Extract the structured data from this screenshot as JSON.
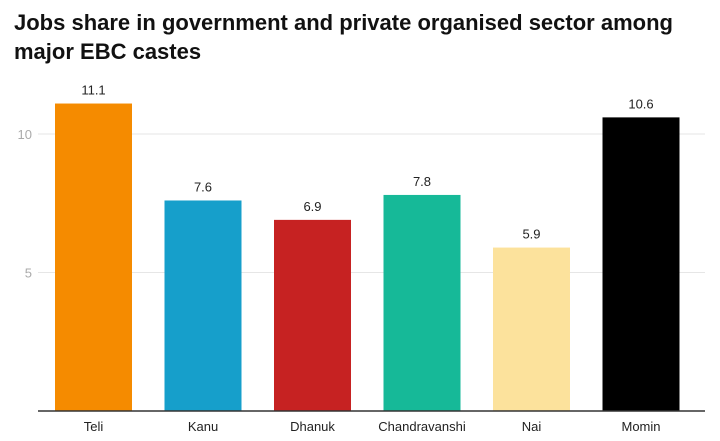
{
  "chart_data": {
    "type": "bar",
    "title": "Jobs share in government and private organised sector among major EBC castes",
    "categories": [
      "Teli",
      "Kanu",
      "Dhanuk",
      "Chandravanshi",
      "Nai",
      "Momin"
    ],
    "values": [
      11.1,
      7.6,
      6.9,
      7.8,
      5.9,
      10.6
    ],
    "data_labels": [
      "11.1",
      "7.6",
      "6.9",
      "7.8",
      "5.9",
      "10.6"
    ],
    "colors": [
      "#F58B00",
      "#169FCB",
      "#C62222",
      "#16B998",
      "#FCE29C",
      "#000000"
    ],
    "yticks": [
      5,
      10
    ],
    "ytick_labels": [
      "5",
      "10"
    ],
    "ylim": [
      0,
      12
    ],
    "xlabel": "",
    "ylabel": "",
    "grid": true,
    "legend": "none"
  }
}
